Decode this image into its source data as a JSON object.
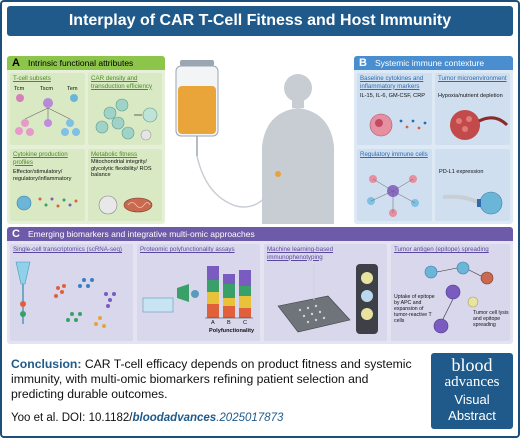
{
  "title": "Interplay of CAR T-Cell Fitness and Host Immunity",
  "panel_a": {
    "letter": "A",
    "heading": "Intrinsic functional attributes",
    "t_cell_subsets": {
      "title": "T-cell subsets",
      "labels": [
        "Tcm",
        "Tscm",
        "Tem"
      ]
    },
    "car_density": {
      "title": "CAR density and transduction efficiency"
    },
    "cytokine": {
      "title": "Cytokine production profiles",
      "text": "Effector/stimulatory/ regulatory/inflammatory"
    },
    "metabolic": {
      "title": "Metabolic fitness",
      "text": "Mitochondrial integrity/ glycolytic flexibility/ ROS balance"
    }
  },
  "panel_b": {
    "letter": "B",
    "heading": "Systemic immune contexture",
    "baseline": {
      "title": "Baseline cytokines and inflammatory markers",
      "text": "IL-15, IL-6, GM-CSF, CRP"
    },
    "tumor_micro": {
      "title": "Tumor microenvironment",
      "text": "Hypoxia/nutrient depletion"
    },
    "regulatory": {
      "title": "Regulatory immune cells"
    },
    "pdl1": {
      "text": "PD-L1 expression"
    }
  },
  "panel_c": {
    "letter": "C",
    "heading": "Emerging biomarkers and integrative multi-omic approaches",
    "scrna": {
      "title": "Single-cell transcriptomics (scRNA-seq)"
    },
    "proteomic": {
      "title": "Proteomic polyfunctionality assays",
      "axis_label": "Polyfunctionality",
      "bar_labels": [
        "A",
        "B",
        "C"
      ]
    },
    "ml": {
      "title": "Machine learning-based immunophenotyping"
    },
    "antigen": {
      "title": "Tumor antigen (epitope) spreading",
      "uptake_text": "Uptake of epitope by APC and expansion of tumor-reactive T cells",
      "lysis_text": "Tumor cell lysis and epitope spreading"
    }
  },
  "conclusion": {
    "head": "Conclusion:",
    "text": "CAR T-cell efficacy depends on product fitness and systemic immunity, with multi-omic biomarkers refining patient selection and predicting durable outcomes."
  },
  "citation": {
    "prefix": "Yoo et al. DOI: 10.1182/",
    "journal": "bloodadvances",
    "suffix": ".2025017873"
  },
  "logo": {
    "line1": "blood",
    "line2": "advances",
    "line3": "Visual",
    "line4": "Abstract"
  },
  "colors": {
    "title_blue": "#1f5a8a",
    "panel_a_green": "#8dc44a",
    "panel_a_bg": "#e6f0d8",
    "panel_b_blue": "#4a8ed0",
    "panel_b_bg": "#dde9f5",
    "panel_c_purple": "#6d5aa8",
    "panel_c_bg": "#e4e3f1"
  }
}
